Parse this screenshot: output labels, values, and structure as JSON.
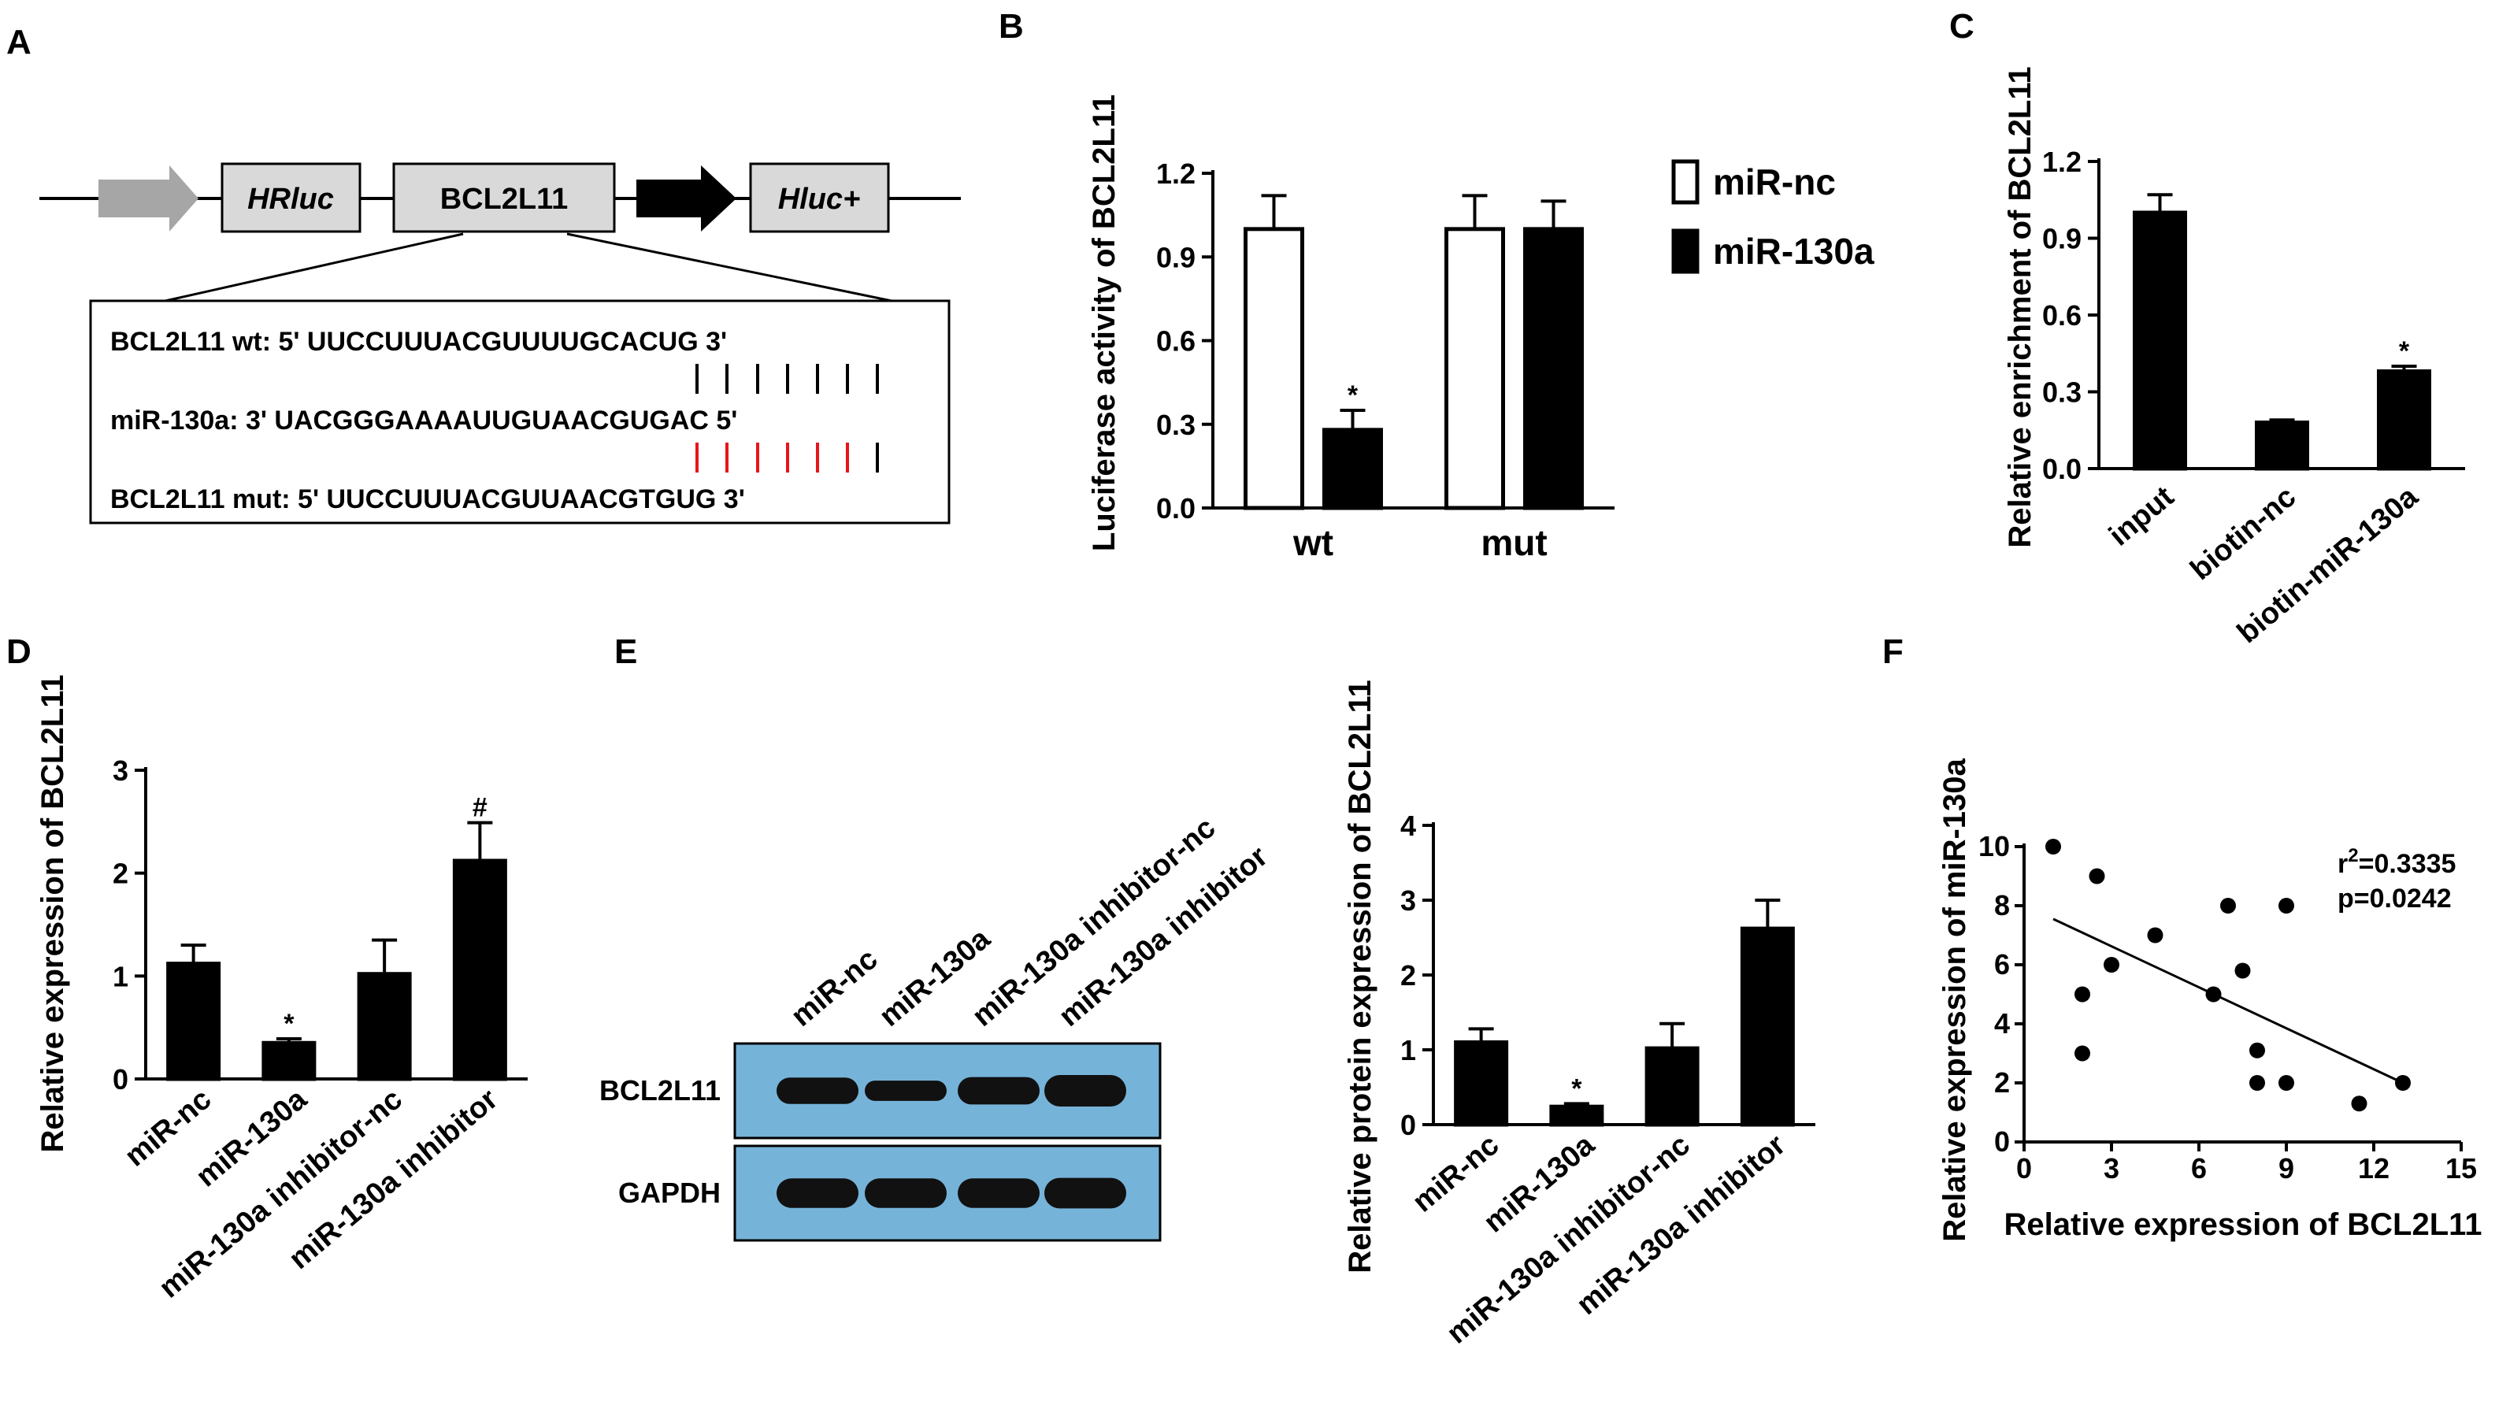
{
  "panels": {
    "a": "A",
    "b": "B",
    "c": "C",
    "d": "D",
    "e": "E",
    "f": "F"
  },
  "panel_a": {
    "box_hrluc": "HRluc",
    "box_gene": "BCL2L11",
    "box_hluc": "Hluc+",
    "seq_wt": "BCL2L11   wt: 5' UUCCUUUACGUUUUGCACUG 3'",
    "seq_mir": "miR-130a:  3' UACGGGAAAAUUGUAACGUGAC 5'",
    "seq_mut": "BCL2L11  mut: 5' UUCCUUUACGUUAACGTGUG 3'",
    "match_color": "#000000",
    "mut_match_color": "#e8141b"
  },
  "panel_e": {
    "lanes": [
      "miR-nc",
      "miR-130a",
      "miR-130a inhibitor-nc",
      "miR-130a inhibitor"
    ],
    "row1": "BCL2L11",
    "row2": "GAPDH",
    "membrane_color": "#76b3d9",
    "band_intensity_bcl2l11": [
      0.75,
      0.45,
      0.8,
      1.0
    ],
    "band_intensity_gapdh": [
      0.9,
      0.9,
      0.9,
      0.95
    ]
  },
  "chart_data": [
    {
      "id": "B",
      "type": "bar",
      "categories": [
        "wt",
        "mut"
      ],
      "series": [
        {
          "name": "miR-nc",
          "values": [
            1.0,
            1.0
          ],
          "errors": [
            0.12,
            0.12
          ],
          "color": "#ffffff"
        },
        {
          "name": "miR-130a",
          "values": [
            0.28,
            1.0
          ],
          "errors": [
            0.07,
            0.1
          ],
          "color": "#000000"
        }
      ],
      "ylabel": "Luciferase activity of BCL2L11",
      "ylim": [
        0,
        1.2
      ],
      "yticks": [
        "0.0",
        "0.3",
        "0.6",
        "0.9",
        "1.2"
      ],
      "annotations": [
        {
          "series": 1,
          "index": 0,
          "text": "*"
        }
      ],
      "legend": "right"
    },
    {
      "id": "C",
      "type": "bar",
      "categories": [
        "input",
        "biotin-nc",
        "biotin-miR-130a"
      ],
      "values": [
        1.0,
        0.18,
        0.38
      ],
      "errors": [
        0.07,
        0.01,
        0.02
      ],
      "ylabel": "Relative enrichment of BCL2L11",
      "ylim": [
        0,
        1.2
      ],
      "yticks": [
        "0.0",
        "0.3",
        "0.6",
        "0.9",
        "1.2"
      ],
      "annotations": [
        {
          "index": 2,
          "text": "*"
        }
      ]
    },
    {
      "id": "D",
      "type": "bar",
      "categories": [
        "miR-nc",
        "miR-130a",
        "miR-130a inhibitor-nc",
        "miR-130a inhibitor"
      ],
      "values": [
        1.12,
        0.35,
        1.02,
        2.12
      ],
      "errors": [
        0.18,
        0.04,
        0.33,
        0.37
      ],
      "ylabel": "Relative expression of BCL2L11",
      "ylim": [
        0,
        3
      ],
      "yticks": [
        "0",
        "1",
        "2",
        "3"
      ],
      "annotations": [
        {
          "index": 1,
          "text": "*"
        },
        {
          "index": 3,
          "text": "#"
        }
      ]
    },
    {
      "id": "E",
      "type": "bar",
      "categories": [
        "miR-nc",
        "miR-130a",
        "miR-130a inhibitor-nc",
        "miR-130a inhibitor"
      ],
      "values": [
        1.1,
        0.24,
        1.02,
        2.62
      ],
      "errors": [
        0.18,
        0.04,
        0.33,
        0.38
      ],
      "ylabel": "Relative protein expression of BCL2L11",
      "ylim": [
        0,
        4
      ],
      "yticks": [
        "0",
        "1",
        "2",
        "3",
        "4"
      ],
      "annotations": [
        {
          "index": 1,
          "text": "*"
        }
      ]
    },
    {
      "id": "F",
      "type": "scatter",
      "x": [
        1,
        2,
        2,
        2.5,
        3,
        4.5,
        6.5,
        7,
        7.5,
        8,
        8,
        9,
        9,
        11.5,
        13
      ],
      "y": [
        10,
        5,
        3,
        9,
        6,
        7,
        5,
        8,
        5.8,
        2,
        3.1,
        2,
        8,
        1.3,
        2
      ],
      "fit": {
        "x": [
          1,
          13
        ],
        "y": [
          7.55,
          2.0
        ]
      },
      "xlabel": "Relative expression of BCL2L11",
      "ylabel": "Relative expression of miR-130a",
      "xlim": [
        0,
        15
      ],
      "ylim": [
        0,
        10
      ],
      "xticks": [
        "0",
        "3",
        "6",
        "9",
        "12",
        "15"
      ],
      "yticks": [
        "0",
        "2",
        "4",
        "6",
        "8",
        "10"
      ],
      "stat_r2": "=0.3335",
      "stat_r2_prefix": "r",
      "stat_r2_sup": "2",
      "stat_p": "p=0.0242"
    }
  ]
}
